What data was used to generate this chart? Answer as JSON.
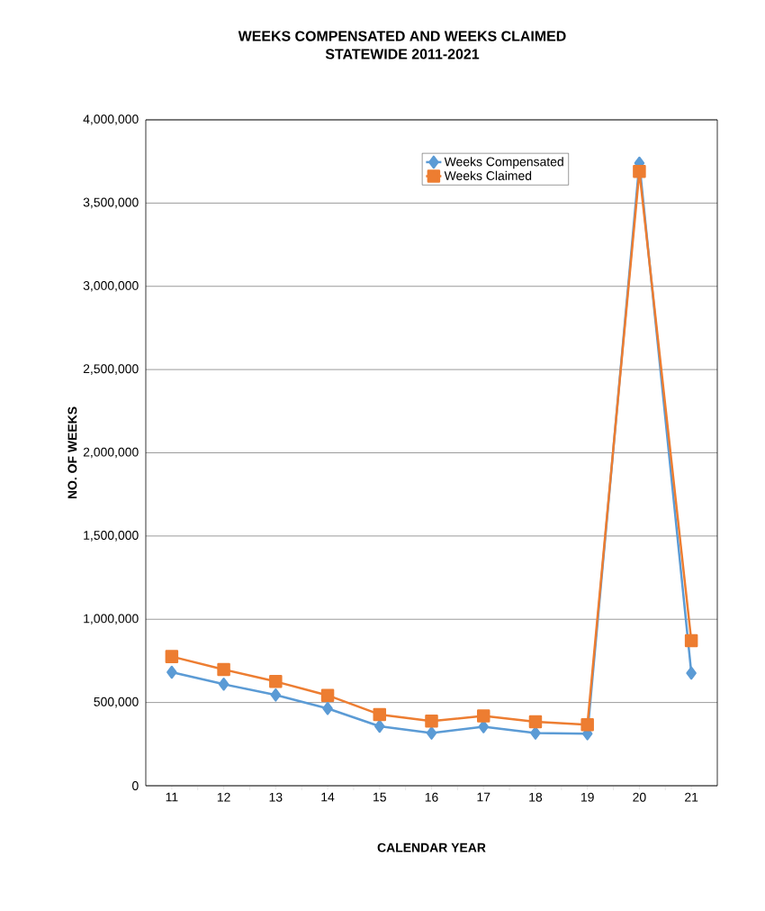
{
  "chart_data": {
    "type": "line",
    "title": "WEEKS COMPENSATED AND WEEKS CLAIMED",
    "subtitle": "STATEWIDE  2011-2021",
    "xlabel": "CALENDAR YEAR",
    "ylabel": "NO. OF WEEKS",
    "categories": [
      "11",
      "12",
      "13",
      "14",
      "15",
      "16",
      "17",
      "18",
      "19",
      "20",
      "21"
    ],
    "series": [
      {
        "name": "Weeks Compensated",
        "color": "#5b9bd5",
        "marker": "diamond",
        "values": [
          682000,
          610000,
          545000,
          464000,
          357000,
          316000,
          355000,
          316000,
          312000,
          3740000,
          677000
        ]
      },
      {
        "name": "Weeks Claimed",
        "color": "#ed7d31",
        "marker": "square",
        "values": [
          776000,
          698000,
          626000,
          543000,
          428000,
          388000,
          420000,
          384000,
          367000,
          3690000,
          871000
        ]
      }
    ],
    "ylim": [
      0,
      4000000
    ],
    "yticks": [
      {
        "value": 0,
        "label": "0"
      },
      {
        "value": 500000,
        "label": "500,000"
      },
      {
        "value": 1000000,
        "label": "1,000,000"
      },
      {
        "value": 1500000,
        "label": "1,500,000"
      },
      {
        "value": 2000000,
        "label": "2,000,000"
      },
      {
        "value": 2500000,
        "label": "2,500,000"
      },
      {
        "value": 3000000,
        "label": "3,000,000"
      },
      {
        "value": 3500000,
        "label": "3,500,000"
      },
      {
        "value": 4000000,
        "label": "4,000,000"
      }
    ],
    "grid": "y",
    "legend": "top right",
    "line_style": "solid"
  }
}
